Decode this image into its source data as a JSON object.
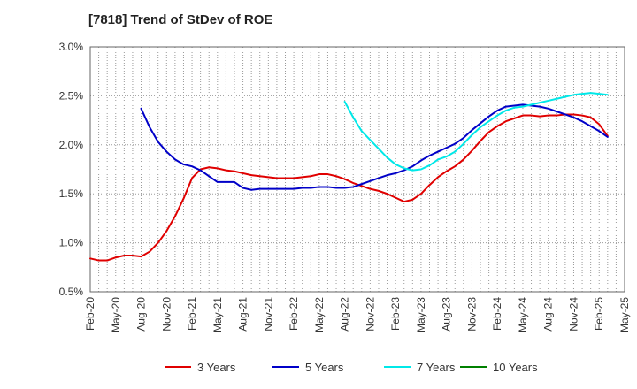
{
  "chart_data": {
    "type": "line",
    "title": "[7818]  Trend of StDev of ROE",
    "xlabel": "",
    "ylabel": "",
    "x_ticks": [
      "Feb-20",
      "May-20",
      "Aug-20",
      "Nov-20",
      "Feb-21",
      "May-21",
      "Aug-21",
      "Nov-21",
      "Feb-22",
      "May-22",
      "Aug-22",
      "Nov-22",
      "Feb-23",
      "May-23",
      "Aug-23",
      "Nov-23",
      "Feb-24",
      "May-24",
      "Aug-24",
      "Nov-24",
      "Feb-25",
      "May-25"
    ],
    "y_ticks": [
      "0.5%",
      "1.0%",
      "1.5%",
      "2.0%",
      "2.5%",
      "3.0%"
    ],
    "ylim": [
      0.5,
      3.0
    ],
    "grid": true,
    "legend_position": "bottom",
    "series": [
      {
        "name": "3 Years",
        "color": "#e00000",
        "points": [
          [
            "Feb-20",
            0.84
          ],
          [
            "Mar-20",
            0.82
          ],
          [
            "Apr-20",
            0.82
          ],
          [
            "May-20",
            0.85
          ],
          [
            "Jun-20",
            0.87
          ],
          [
            "Jul-20",
            0.87
          ],
          [
            "Aug-20",
            0.86
          ],
          [
            "Sep-20",
            0.91
          ],
          [
            "Oct-20",
            1.0
          ],
          [
            "Nov-20",
            1.12
          ],
          [
            "Dec-20",
            1.27
          ],
          [
            "Jan-21",
            1.45
          ],
          [
            "Feb-21",
            1.66
          ],
          [
            "Mar-21",
            1.75
          ],
          [
            "Apr-21",
            1.77
          ],
          [
            "May-21",
            1.76
          ],
          [
            "Jun-21",
            1.74
          ],
          [
            "Jul-21",
            1.73
          ],
          [
            "Aug-21",
            1.71
          ],
          [
            "Sep-21",
            1.69
          ],
          [
            "Oct-21",
            1.68
          ],
          [
            "Nov-21",
            1.67
          ],
          [
            "Dec-21",
            1.66
          ],
          [
            "Jan-22",
            1.66
          ],
          [
            "Feb-22",
            1.66
          ],
          [
            "Mar-22",
            1.67
          ],
          [
            "Apr-22",
            1.68
          ],
          [
            "May-22",
            1.7
          ],
          [
            "Jun-22",
            1.7
          ],
          [
            "Jul-22",
            1.68
          ],
          [
            "Aug-22",
            1.65
          ],
          [
            "Sep-22",
            1.61
          ],
          [
            "Oct-22",
            1.58
          ],
          [
            "Nov-22",
            1.55
          ],
          [
            "Dec-22",
            1.53
          ],
          [
            "Jan-23",
            1.5
          ],
          [
            "Feb-23",
            1.46
          ],
          [
            "Mar-23",
            1.42
          ],
          [
            "Apr-23",
            1.44
          ],
          [
            "May-23",
            1.5
          ],
          [
            "Jun-23",
            1.59
          ],
          [
            "Jul-23",
            1.67
          ],
          [
            "Aug-23",
            1.73
          ],
          [
            "Sep-23",
            1.78
          ],
          [
            "Oct-23",
            1.85
          ],
          [
            "Nov-23",
            1.94
          ],
          [
            "Dec-23",
            2.04
          ],
          [
            "Jan-24",
            2.13
          ],
          [
            "Feb-24",
            2.19
          ],
          [
            "Mar-24",
            2.24
          ],
          [
            "Apr-24",
            2.27
          ],
          [
            "May-24",
            2.3
          ],
          [
            "Jun-24",
            2.3
          ],
          [
            "Jul-24",
            2.29
          ],
          [
            "Aug-24",
            2.3
          ],
          [
            "Sep-24",
            2.3
          ],
          [
            "Oct-24",
            2.31
          ],
          [
            "Nov-24",
            2.31
          ],
          [
            "Dec-24",
            2.3
          ],
          [
            "Jan-25",
            2.28
          ],
          [
            "Feb-25",
            2.21
          ],
          [
            "Mar-25",
            2.09
          ]
        ]
      },
      {
        "name": "5 Years",
        "color": "#0000c8",
        "points": [
          [
            "Aug-20",
            2.37
          ],
          [
            "Sep-20",
            2.18
          ],
          [
            "Oct-20",
            2.03
          ],
          [
            "Nov-20",
            1.93
          ],
          [
            "Dec-20",
            1.85
          ],
          [
            "Jan-21",
            1.8
          ],
          [
            "Feb-21",
            1.78
          ],
          [
            "Mar-21",
            1.74
          ],
          [
            "Apr-21",
            1.68
          ],
          [
            "May-21",
            1.62
          ],
          [
            "Jun-21",
            1.62
          ],
          [
            "Jul-21",
            1.62
          ],
          [
            "Aug-21",
            1.56
          ],
          [
            "Sep-21",
            1.54
          ],
          [
            "Oct-21",
            1.55
          ],
          [
            "Nov-21",
            1.55
          ],
          [
            "Dec-21",
            1.55
          ],
          [
            "Jan-22",
            1.55
          ],
          [
            "Feb-22",
            1.55
          ],
          [
            "Mar-22",
            1.56
          ],
          [
            "Apr-22",
            1.56
          ],
          [
            "May-22",
            1.57
          ],
          [
            "Jun-22",
            1.57
          ],
          [
            "Jul-22",
            1.56
          ],
          [
            "Aug-22",
            1.56
          ],
          [
            "Sep-22",
            1.57
          ],
          [
            "Oct-22",
            1.6
          ],
          [
            "Nov-22",
            1.63
          ],
          [
            "Dec-22",
            1.66
          ],
          [
            "Jan-23",
            1.69
          ],
          [
            "Feb-23",
            1.71
          ],
          [
            "Mar-23",
            1.74
          ],
          [
            "Apr-23",
            1.78
          ],
          [
            "May-23",
            1.84
          ],
          [
            "Jun-23",
            1.89
          ],
          [
            "Jul-23",
            1.93
          ],
          [
            "Aug-23",
            1.97
          ],
          [
            "Sep-23",
            2.01
          ],
          [
            "Oct-23",
            2.07
          ],
          [
            "Nov-23",
            2.15
          ],
          [
            "Dec-23",
            2.22
          ],
          [
            "Jan-24",
            2.29
          ],
          [
            "Feb-24",
            2.35
          ],
          [
            "Mar-24",
            2.39
          ],
          [
            "Apr-24",
            2.4
          ],
          [
            "May-24",
            2.41
          ],
          [
            "Jun-24",
            2.4
          ],
          [
            "Jul-24",
            2.39
          ],
          [
            "Aug-24",
            2.37
          ],
          [
            "Sep-24",
            2.34
          ],
          [
            "Oct-24",
            2.31
          ],
          [
            "Nov-24",
            2.28
          ],
          [
            "Dec-24",
            2.24
          ],
          [
            "Jan-25",
            2.19
          ],
          [
            "Feb-25",
            2.14
          ],
          [
            "Mar-25",
            2.08
          ]
        ]
      },
      {
        "name": "7 Years",
        "color": "#00e8e8",
        "points": [
          [
            "Aug-22",
            2.44
          ],
          [
            "Sep-22",
            2.28
          ],
          [
            "Oct-22",
            2.14
          ],
          [
            "Nov-22",
            2.05
          ],
          [
            "Dec-22",
            1.96
          ],
          [
            "Jan-23",
            1.87
          ],
          [
            "Feb-23",
            1.8
          ],
          [
            "Mar-23",
            1.76
          ],
          [
            "Apr-23",
            1.74
          ],
          [
            "May-23",
            1.75
          ],
          [
            "Jun-23",
            1.79
          ],
          [
            "Jul-23",
            1.85
          ],
          [
            "Aug-23",
            1.88
          ],
          [
            "Sep-23",
            1.93
          ],
          [
            "Oct-23",
            2.01
          ],
          [
            "Nov-23",
            2.1
          ],
          [
            "Dec-23",
            2.18
          ],
          [
            "Jan-24",
            2.24
          ],
          [
            "Feb-24",
            2.3
          ],
          [
            "Mar-24",
            2.35
          ],
          [
            "Apr-24",
            2.38
          ],
          [
            "May-24",
            2.39
          ],
          [
            "Jun-24",
            2.41
          ],
          [
            "Jul-24",
            2.43
          ],
          [
            "Aug-24",
            2.45
          ],
          [
            "Sep-24",
            2.47
          ],
          [
            "Oct-24",
            2.49
          ],
          [
            "Nov-24",
            2.51
          ],
          [
            "Dec-24",
            2.52
          ],
          [
            "Jan-25",
            2.53
          ],
          [
            "Feb-25",
            2.52
          ],
          [
            "Mar-25",
            2.51
          ]
        ]
      },
      {
        "name": "10 Years",
        "color": "#008000",
        "points": []
      }
    ]
  }
}
